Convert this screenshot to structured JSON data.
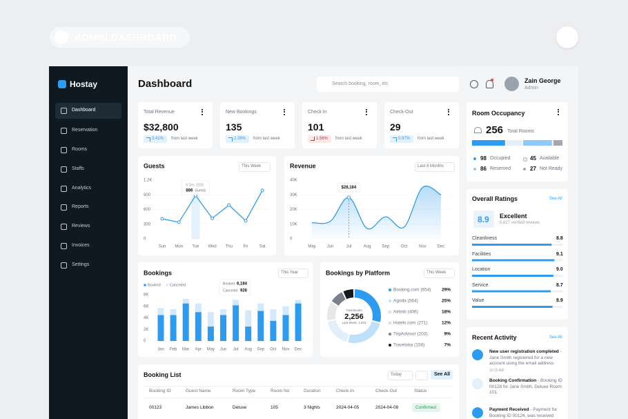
{
  "badge": "ADMIN DASHBOARD",
  "sidebar": {
    "brand": "Hostay",
    "menu": [
      "Dashboard",
      "Reservation",
      "Rooms",
      "Staffs",
      "Analytics",
      "Reports",
      "Reviews",
      "Invoices",
      "Settings"
    ]
  },
  "header": {
    "title": "Dashboard",
    "search_placeholder": "Search booking, room, etc",
    "user_name": "Zain George",
    "user_role": "Admin"
  },
  "stats": [
    {
      "label": "Total Revenue",
      "value": "$32,800",
      "change": "3.41%",
      "trend": "up",
      "note": "from last week"
    },
    {
      "label": "New Bookings",
      "value": "135",
      "change": "2.28%",
      "trend": "up",
      "note": "from last week"
    },
    {
      "label": "Check In",
      "value": "101",
      "change": "1.56%",
      "trend": "down",
      "note": "from last week"
    },
    {
      "label": "Check-Out",
      "value": "29",
      "change": "0.97%",
      "trend": "up",
      "note": "from last week"
    }
  ],
  "occupancy": {
    "title": "Room Occupancy",
    "total": "256",
    "total_label": "Total Rooms",
    "items": [
      {
        "value": 98,
        "label": "Occupied",
        "color": "#2d9cf0"
      },
      {
        "value": 45,
        "label": "Available",
        "color": "#e4eef8"
      },
      {
        "value": 86,
        "label": "Reserved",
        "color": "#8fcbf6"
      },
      {
        "value": 27,
        "label": "Not Ready",
        "color": "#a3a8b0"
      }
    ]
  },
  "guests": {
    "type": "line",
    "title": "Guests",
    "period": "This Week",
    "categories": [
      "Sun",
      "Mon",
      "Tue",
      "Wed",
      "Thu",
      "Fri",
      "Sat"
    ],
    "values": [
      410,
      340,
      886,
      420,
      690,
      370,
      990
    ],
    "color": "#2d9cf0",
    "ylim": [
      0,
      1200
    ],
    "yticks": [
      0,
      300,
      600,
      900,
      {
        "value": 1200,
        "label": "1.2K"
      }
    ],
    "grid": true,
    "tooltip": {
      "date": "8 Dec 2028",
      "value": 886,
      "unit": "Guests"
    }
  },
  "revenue": {
    "type": "area",
    "title": "Revenue",
    "period": "Last 8 Months",
    "categories": [
      "May",
      "Jun",
      "Jul",
      "Aug",
      "Sep",
      "Oct",
      "Nov",
      "Dec"
    ],
    "values": [
      11000,
      12000,
      28184,
      7000,
      15000,
      8000,
      35000,
      30000
    ],
    "color": "#2d9cf0",
    "ylim": [
      0,
      40000
    ],
    "yticks": [
      0,
      {
        "value": 10000,
        "label": "10K"
      },
      {
        "value": 20000,
        "label": "20K"
      },
      {
        "value": 30000,
        "label": "30K"
      },
      {
        "value": 40000,
        "label": "40K"
      }
    ],
    "grid": true,
    "tooltip": {
      "value": 28184,
      "label": "$28,184"
    }
  },
  "bookings": {
    "type": "stacked_bar",
    "title": "Bookings",
    "period": "This Year",
    "categories": [
      "Jan",
      "Feb",
      "Mar",
      "Apr",
      "May",
      "Jun",
      "Jul",
      "Aug",
      "Sep",
      "Oct",
      "Nov",
      "Dec"
    ],
    "series": [
      {
        "name": "Booked",
        "color": "#2d9cf0",
        "values": [
          4500,
          4500,
          6500,
          5000,
          2500,
          4500,
          6184,
          2500,
          5200,
          3500,
          4500,
          6500
        ]
      },
      {
        "name": "Canceled",
        "color": "#d3e9fb",
        "values": [
          1200,
          1000,
          800,
          1500,
          2500,
          1000,
          926,
          2800,
          1300,
          2000,
          1500,
          600
        ]
      }
    ],
    "ylim": [
      0,
      8000
    ],
    "yticks": [
      0,
      {
        "value": 2000,
        "label": "2K"
      },
      {
        "value": 4000,
        "label": "4K"
      },
      {
        "value": 6000,
        "label": "6K"
      },
      {
        "value": 8000,
        "label": "8K"
      }
    ],
    "grid": true,
    "tooltip": {
      "rows": [
        {
          "name": "Booked",
          "value": "6,184"
        },
        {
          "name": "Canceled",
          "value": "926"
        }
      ]
    }
  },
  "platforms": {
    "type": "pie",
    "title": "Bookings by Platform",
    "period": "This Week",
    "center_label": "Total Books",
    "center_value": "2,256",
    "center_note": "Last Week: 1,823",
    "categories": [
      "Booking.com (654)",
      "Agoda (564)",
      "Airbnb (406)",
      "Hotels.com (271)",
      "TripAdvisor (203)",
      "Traveloka (158)"
    ],
    "values": [
      29,
      25,
      18,
      12,
      9,
      7
    ],
    "value_labels": [
      "29%",
      "25%",
      "18%",
      "12%",
      "9%",
      "7%"
    ],
    "colors": [
      "#2d9cf0",
      "#bfe0fa",
      "#e1effb",
      "#e6e8eb",
      "#7b818a",
      "#15181c"
    ]
  },
  "ratings": {
    "title": "Overall Ratings",
    "link": "See All",
    "score": "8.9",
    "verdict": "Excellent",
    "reviews": "5,827 verified reviews",
    "items": [
      {
        "label": "Cleanliness",
        "value": 8.8
      },
      {
        "label": "Facilities",
        "value": 9.1
      },
      {
        "label": "Location",
        "value": 9,
        "value_label": "9.0"
      },
      {
        "label": "Service",
        "value": 8.7
      },
      {
        "label": "Value",
        "value": 8.9
      }
    ]
  },
  "activity": {
    "title": "Recent Activity",
    "link": "See All",
    "items": [
      {
        "title": "New user registration completed",
        "text": "- Jane Smith registered for a new account using the email address.",
        "time": "10:15 AM"
      },
      {
        "title": "Booking Confirmation",
        "text": "- Booking ID 00128 for Jane Smith, Deluxe Room 101."
      },
      {
        "title": "Payment Received",
        "text": "- Payment for Booking ID 00124, was received"
      }
    ]
  },
  "booking_list": {
    "title": "Booking List",
    "filter": "Today",
    "link": "See All",
    "columns": [
      "Booking ID",
      "Guest Name",
      "Room Type",
      "Room No",
      "Duration",
      "Check-In",
      "Check-Out",
      "Status"
    ],
    "rows": [
      [
        "00123",
        "James Libbon",
        "Deluxe",
        "105",
        "3 Nights",
        "2024-04-05",
        "2024-04-08",
        "Confirmed"
      ]
    ]
  }
}
